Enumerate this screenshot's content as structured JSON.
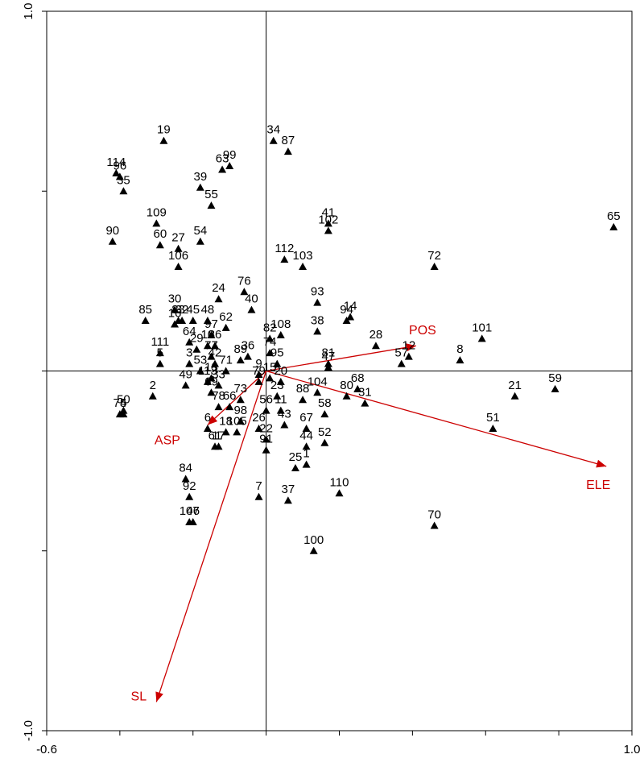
{
  "chart_data": {
    "type": "scatter",
    "title": "",
    "xlabel": "",
    "ylabel": "",
    "xlim": [
      -0.6,
      1.0
    ],
    "ylim": [
      -1.0,
      1.0
    ],
    "x_ticks": [
      -0.6,
      -0.4,
      -0.2,
      0.0,
      0.2,
      0.4,
      0.6,
      0.8,
      1.0
    ],
    "y_ticks": [
      -1.0,
      -0.5,
      0.0,
      0.5,
      1.0
    ],
    "x_tick_labels": [
      {
        "value": -0.6,
        "label": "-0.6"
      },
      {
        "value": 1.0,
        "label": "1.0"
      }
    ],
    "y_tick_labels": [
      {
        "value": 1.0,
        "label": "1.0"
      },
      {
        "value": -1.0,
        "label": "-1.0"
      }
    ],
    "grid": false,
    "zero_lines": true,
    "colors": {
      "points": "#000000",
      "vectors": "#cc0000"
    },
    "vectors": [
      {
        "label": "POS",
        "x": 0.41,
        "y": 0.07
      },
      {
        "label": "ELE",
        "x": 0.93,
        "y": -0.265
      },
      {
        "label": "ASP",
        "x": -0.16,
        "y": -0.15
      },
      {
        "label": "SL",
        "x": -0.3,
        "y": -0.92
      }
    ],
    "points": [
      {
        "label": "1",
        "x": 0.11,
        "y": -0.26
      },
      {
        "label": "2",
        "x": -0.31,
        "y": -0.07
      },
      {
        "label": "3",
        "x": -0.21,
        "y": 0.02
      },
      {
        "label": "4",
        "x": -0.39,
        "y": -0.12
      },
      {
        "label": "5",
        "x": -0.29,
        "y": 0.02
      },
      {
        "label": "6",
        "x": -0.16,
        "y": -0.16
      },
      {
        "label": "7",
        "x": -0.02,
        "y": -0.35
      },
      {
        "label": "8",
        "x": 0.53,
        "y": 0.03
      },
      {
        "label": "9",
        "x": -0.02,
        "y": -0.01
      },
      {
        "label": "10",
        "x": -0.16,
        "y": 0.07
      },
      {
        "label": "11",
        "x": 0.04,
        "y": -0.11
      },
      {
        "label": "12",
        "x": 0.39,
        "y": 0.04
      },
      {
        "label": "13",
        "x": -0.15,
        "y": -0.02
      },
      {
        "label": "14",
        "x": 0.23,
        "y": 0.15
      },
      {
        "label": "15",
        "x": 0.01,
        "y": -0.02
      },
      {
        "label": "16",
        "x": -0.25,
        "y": 0.13
      },
      {
        "label": "17",
        "x": -0.13,
        "y": -0.21
      },
      {
        "label": "18",
        "x": -0.11,
        "y": -0.17
      },
      {
        "label": "19",
        "x": -0.28,
        "y": 0.64
      },
      {
        "label": "20",
        "x": 0.04,
        "y": -0.03
      },
      {
        "label": "21",
        "x": 0.68,
        "y": -0.07
      },
      {
        "label": "22",
        "x": 0.0,
        "y": -0.19
      },
      {
        "label": "23",
        "x": 0.03,
        "y": -0.07
      },
      {
        "label": "24",
        "x": -0.13,
        "y": 0.2
      },
      {
        "label": "25",
        "x": 0.08,
        "y": -0.27
      },
      {
        "label": "26",
        "x": -0.02,
        "y": -0.16
      },
      {
        "label": "27",
        "x": -0.24,
        "y": 0.34
      },
      {
        "label": "28",
        "x": 0.3,
        "y": 0.07
      },
      {
        "label": "29",
        "x": -0.19,
        "y": 0.06
      },
      {
        "label": "30",
        "x": -0.25,
        "y": 0.17
      },
      {
        "label": "31",
        "x": 0.27,
        "y": -0.09
      },
      {
        "label": "32",
        "x": -0.23,
        "y": 0.14
      },
      {
        "label": "33",
        "x": -0.13,
        "y": -0.04
      },
      {
        "label": "34",
        "x": 0.02,
        "y": 0.64
      },
      {
        "label": "35",
        "x": -0.39,
        "y": 0.5
      },
      {
        "label": "36",
        "x": -0.05,
        "y": 0.04
      },
      {
        "label": "37",
        "x": 0.06,
        "y": -0.36
      },
      {
        "label": "38",
        "x": 0.14,
        "y": 0.11
      },
      {
        "label": "39",
        "x": -0.18,
        "y": 0.51
      },
      {
        "label": "40",
        "x": -0.04,
        "y": 0.17
      },
      {
        "label": "41",
        "x": 0.17,
        "y": 0.41
      },
      {
        "label": "42",
        "x": -0.14,
        "y": 0.02
      },
      {
        "label": "43",
        "x": 0.05,
        "y": -0.15
      },
      {
        "label": "44",
        "x": 0.11,
        "y": -0.21
      },
      {
        "label": "45",
        "x": -0.2,
        "y": 0.14
      },
      {
        "label": "46",
        "x": -0.2,
        "y": -0.42
      },
      {
        "label": "47",
        "x": 0.17,
        "y": 0.01
      },
      {
        "label": "48",
        "x": -0.16,
        "y": 0.14
      },
      {
        "label": "49",
        "x": -0.22,
        "y": -0.04
      },
      {
        "label": "50",
        "x": -0.39,
        "y": -0.11
      },
      {
        "label": "51",
        "x": 0.62,
        "y": -0.16
      },
      {
        "label": "52",
        "x": 0.16,
        "y": -0.2
      },
      {
        "label": "53",
        "x": -0.18,
        "y": 0.0
      },
      {
        "label": "54",
        "x": -0.18,
        "y": 0.36
      },
      {
        "label": "55",
        "x": -0.15,
        "y": 0.46
      },
      {
        "label": "56",
        "x": 0.0,
        "y": -0.11
      },
      {
        "label": "57",
        "x": 0.37,
        "y": 0.02
      },
      {
        "label": "58",
        "x": 0.16,
        "y": -0.12
      },
      {
        "label": "59",
        "x": 0.79,
        "y": -0.05
      },
      {
        "label": "60",
        "x": -0.29,
        "y": 0.35
      },
      {
        "label": "61",
        "x": -0.14,
        "y": -0.21
      },
      {
        "label": "62",
        "x": -0.11,
        "y": 0.12
      },
      {
        "label": "63",
        "x": -0.12,
        "y": 0.56
      },
      {
        "label": "64",
        "x": -0.21,
        "y": 0.08
      },
      {
        "label": "65",
        "x": 0.95,
        "y": 0.4
      },
      {
        "label": "66",
        "x": -0.1,
        "y": -0.1
      },
      {
        "label": "67",
        "x": 0.11,
        "y": -0.16
      },
      {
        "label": "68",
        "x": 0.25,
        "y": -0.05
      },
      {
        "label": "69",
        "x": -0.15,
        "y": -0.06
      },
      {
        "label": "70",
        "x": 0.46,
        "y": -0.43
      },
      {
        "label": "71",
        "x": -0.11,
        "y": 0.0
      },
      {
        "label": "72",
        "x": 0.46,
        "y": 0.29
      },
      {
        "label": "73",
        "x": -0.07,
        "y": -0.08
      },
      {
        "label": "74",
        "x": 0.01,
        "y": 0.05
      },
      {
        "label": "75",
        "x": -0.4,
        "y": -0.12
      },
      {
        "label": "76",
        "x": -0.06,
        "y": 0.22
      },
      {
        "label": "77",
        "x": -0.15,
        "y": 0.04
      },
      {
        "label": "78",
        "x": -0.13,
        "y": -0.1
      },
      {
        "label": "79",
        "x": -0.02,
        "y": -0.03
      },
      {
        "label": "80",
        "x": 0.22,
        "y": -0.07
      },
      {
        "label": "81",
        "x": 0.17,
        "y": 0.02
      },
      {
        "label": "82",
        "x": 0.01,
        "y": 0.09
      },
      {
        "label": "83",
        "x": -0.24,
        "y": 0.14
      },
      {
        "label": "84",
        "x": -0.22,
        "y": -0.3
      },
      {
        "label": "85",
        "x": -0.33,
        "y": 0.14
      },
      {
        "label": "86",
        "x": -0.14,
        "y": 0.07
      },
      {
        "label": "87",
        "x": 0.06,
        "y": 0.61
      },
      {
        "label": "88",
        "x": 0.1,
        "y": -0.08
      },
      {
        "label": "89",
        "x": -0.07,
        "y": 0.03
      },
      {
        "label": "90",
        "x": -0.42,
        "y": 0.36
      },
      {
        "label": "91",
        "x": 0.0,
        "y": -0.22
      },
      {
        "label": "92",
        "x": -0.21,
        "y": -0.35
      },
      {
        "label": "93",
        "x": 0.14,
        "y": 0.19
      },
      {
        "label": "94",
        "x": 0.22,
        "y": 0.14
      },
      {
        "label": "95",
        "x": 0.03,
        "y": 0.02
      },
      {
        "label": "96",
        "x": -0.4,
        "y": 0.54
      },
      {
        "label": "97",
        "x": -0.15,
        "y": 0.1
      },
      {
        "label": "98",
        "x": -0.07,
        "y": -0.14
      },
      {
        "label": "99",
        "x": -0.1,
        "y": 0.57
      },
      {
        "label": "100",
        "x": 0.13,
        "y": -0.5
      },
      {
        "label": "101",
        "x": 0.59,
        "y": 0.09
      },
      {
        "label": "102",
        "x": 0.17,
        "y": 0.39
      },
      {
        "label": "103",
        "x": 0.1,
        "y": 0.29
      },
      {
        "label": "104",
        "x": 0.14,
        "y": -0.06
      },
      {
        "label": "105",
        "x": -0.08,
        "y": -0.17
      },
      {
        "label": "106",
        "x": -0.24,
        "y": 0.29
      },
      {
        "label": "107",
        "x": -0.21,
        "y": -0.42
      },
      {
        "label": "108",
        "x": 0.04,
        "y": 0.1
      },
      {
        "label": "109",
        "x": -0.3,
        "y": 0.41
      },
      {
        "label": "110",
        "x": 0.2,
        "y": -0.34
      },
      {
        "label": "111",
        "x": -0.29,
        "y": 0.05
      },
      {
        "label": "112",
        "x": 0.05,
        "y": 0.31
      },
      {
        "label": "113",
        "x": -0.16,
        "y": -0.03
      },
      {
        "label": "114",
        "x": -0.41,
        "y": 0.55
      }
    ]
  }
}
